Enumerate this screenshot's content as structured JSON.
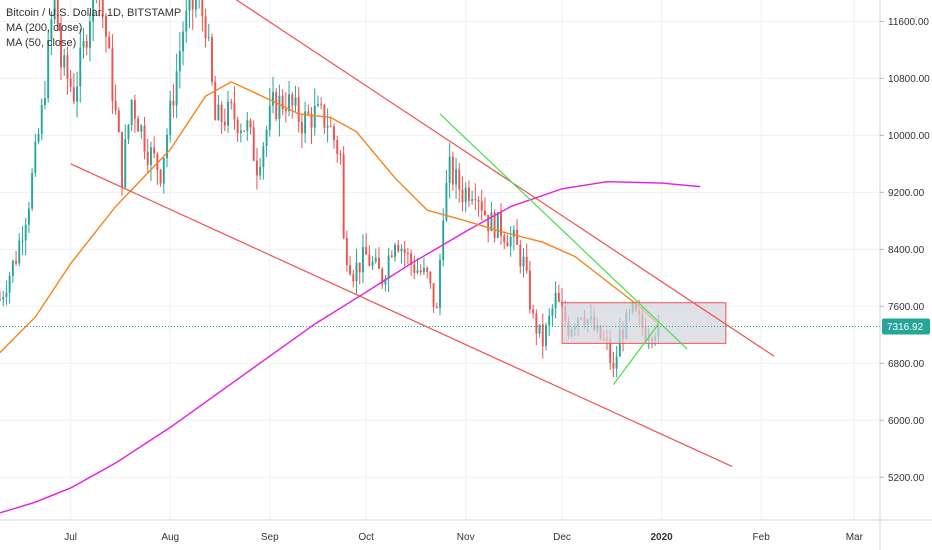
{
  "legend": {
    "symbol": "Bitcoin / U.S. Dollar, 1D, BITSTAMP",
    "ma200": "MA (200, close)",
    "ma50": "MA (50, close)"
  },
  "colors": {
    "up": "#26a69a",
    "down": "#ef5350",
    "ma200": "#e31ee0",
    "ma50": "#f5841f",
    "trend": "#ef5350",
    "wedge": "#44e044",
    "grid": "#eef0f3",
    "axis_text": "#333333",
    "last_price": "#26a69a",
    "box_fill": "#d3d4dc",
    "box_stroke": "#ef5350"
  },
  "chart_data": {
    "type": "candlestick",
    "symbol": "BTCUSD",
    "timeframe": "1D",
    "ylim": [
      4600,
      11900
    ],
    "y_ticks": [
      "11600.00",
      "10800.00",
      "10000.00",
      "9200.00",
      "8400.00",
      "7600.00",
      "6800.00",
      "6000.00",
      "5200.00"
    ],
    "x_ticks": [
      {
        "label": "Jul",
        "date": "2019-07-01",
        "bold": false
      },
      {
        "label": "Aug",
        "date": "2019-08-01",
        "bold": false
      },
      {
        "label": "Sep",
        "date": "2019-09-01",
        "bold": false
      },
      {
        "label": "Oct",
        "date": "2019-10-01",
        "bold": false
      },
      {
        "label": "Nov",
        "date": "2019-11-01",
        "bold": false
      },
      {
        "label": "Dec",
        "date": "2019-12-01",
        "bold": false
      },
      {
        "label": "2020",
        "date": "2020-01-01",
        "bold": true
      },
      {
        "label": "Feb",
        "date": "2020-02-01",
        "bold": false
      },
      {
        "label": "Mar",
        "date": "2020-03-01",
        "bold": false
      }
    ],
    "xlim": [
      "2019-06-09",
      "2020-03-09"
    ],
    "last_price": {
      "label": "7316.92",
      "value": 7316.92
    },
    "price_path": [
      [
        "2019-06-09",
        7700
      ],
      [
        "2019-06-14",
        8300
      ],
      [
        "2019-06-18",
        9100
      ],
      [
        "2019-06-22",
        10300
      ],
      [
        "2019-06-26",
        12000
      ],
      [
        "2019-06-28",
        11000
      ],
      [
        "2019-07-02",
        10600
      ],
      [
        "2019-07-05",
        11200
      ],
      [
        "2019-07-09",
        12300
      ],
      [
        "2019-07-12",
        11400
      ],
      [
        "2019-07-16",
        9900
      ],
      [
        "2019-07-17",
        9450
      ],
      [
        "2019-07-20",
        10500
      ],
      [
        "2019-07-25",
        9800
      ],
      [
        "2019-07-29",
        9500
      ],
      [
        "2019-08-01",
        10300
      ],
      [
        "2019-08-05",
        11500
      ],
      [
        "2019-08-09",
        11900
      ],
      [
        "2019-08-12",
        11600
      ],
      [
        "2019-08-15",
        10200
      ],
      [
        "2019-08-20",
        10300
      ],
      [
        "2019-08-25",
        10100
      ],
      [
        "2019-08-28",
        9600
      ],
      [
        "2019-09-02",
        10400
      ],
      [
        "2019-09-06",
        10500
      ],
      [
        "2019-09-11",
        10200
      ],
      [
        "2019-09-15",
        10300
      ],
      [
        "2019-09-19",
        10200
      ],
      [
        "2019-09-23",
        9700
      ],
      [
        "2019-09-24",
        8500
      ],
      [
        "2019-09-27",
        8100
      ],
      [
        "2019-10-01",
        8300
      ],
      [
        "2019-10-06",
        8000
      ],
      [
        "2019-10-10",
        8600
      ],
      [
        "2019-10-15",
        8200
      ],
      [
        "2019-10-20",
        8000
      ],
      [
        "2019-10-23",
        7500
      ],
      [
        "2019-10-25",
        9000
      ],
      [
        "2019-10-27",
        9500
      ],
      [
        "2019-10-31",
        9200
      ],
      [
        "2019-11-04",
        9300
      ],
      [
        "2019-11-08",
        8800
      ],
      [
        "2019-11-12",
        8700
      ],
      [
        "2019-11-16",
        8500
      ],
      [
        "2019-11-19",
        8200
      ],
      [
        "2019-11-22",
        7400
      ],
      [
        "2019-11-25",
        7100
      ],
      [
        "2019-11-29",
        7700
      ],
      [
        "2019-12-03",
        7300
      ],
      [
        "2019-12-07",
        7550
      ],
      [
        "2019-12-12",
        7200
      ],
      [
        "2019-12-15",
        7050
      ],
      [
        "2019-12-17",
        6650
      ],
      [
        "2019-12-19",
        7200
      ],
      [
        "2019-12-23",
        7500
      ],
      [
        "2019-12-27",
        7250
      ],
      [
        "2019-12-31",
        7316.92
      ]
    ],
    "ma200": [
      [
        "2019-06-09",
        4700
      ],
      [
        "2019-06-20",
        4850
      ],
      [
        "2019-07-01",
        5050
      ],
      [
        "2019-07-15",
        5400
      ],
      [
        "2019-08-01",
        5900
      ],
      [
        "2019-08-15",
        6350
      ],
      [
        "2019-09-01",
        6900
      ],
      [
        "2019-09-15",
        7350
      ],
      [
        "2019-10-01",
        7800
      ],
      [
        "2019-10-15",
        8200
      ],
      [
        "2019-11-01",
        8650
      ],
      [
        "2019-11-15",
        9000
      ],
      [
        "2019-12-01",
        9250
      ],
      [
        "2019-12-15",
        9350
      ],
      [
        "2020-01-01",
        9330
      ],
      [
        "2020-01-13",
        9280
      ]
    ],
    "ma50": [
      [
        "2019-06-09",
        6950
      ],
      [
        "2019-06-20",
        7450
      ],
      [
        "2019-07-01",
        8200
      ],
      [
        "2019-07-15",
        9000
      ],
      [
        "2019-08-01",
        9800
      ],
      [
        "2019-08-12",
        10550
      ],
      [
        "2019-08-20",
        10750
      ],
      [
        "2019-09-01",
        10500
      ],
      [
        "2019-09-10",
        10300
      ],
      [
        "2019-09-20",
        10250
      ],
      [
        "2019-09-28",
        10050
      ],
      [
        "2019-10-10",
        9400
      ],
      [
        "2019-10-20",
        8950
      ],
      [
        "2019-11-01",
        8800
      ],
      [
        "2019-11-12",
        8650
      ],
      [
        "2019-11-25",
        8500
      ],
      [
        "2019-12-05",
        8300
      ],
      [
        "2019-12-15",
        7950
      ],
      [
        "2019-12-25",
        7600
      ],
      [
        "2019-12-31",
        7350
      ]
    ],
    "drawings": [
      {
        "name": "upper-channel-line",
        "kind": "trend",
        "from": [
          "2019-08-15",
          12100
        ],
        "to": [
          "2020-02-05",
          6900
        ]
      },
      {
        "name": "lower-channel-line",
        "kind": "trend",
        "from": [
          "2019-07-01",
          9600
        ],
        "to": [
          "2020-01-23",
          5350
        ]
      },
      {
        "name": "green-resistance-line",
        "kind": "wedge",
        "from": [
          "2019-10-24",
          10300
        ],
        "to": [
          "2020-01-09",
          7000
        ]
      },
      {
        "name": "green-support-line",
        "kind": "wedge",
        "from": [
          "2019-12-17",
          6500
        ],
        "to": [
          "2019-12-31",
          7350
        ]
      }
    ],
    "range_box": {
      "from": [
        "2019-12-01",
        7650
      ],
      "to": [
        "2020-01-21",
        7080
      ]
    }
  }
}
